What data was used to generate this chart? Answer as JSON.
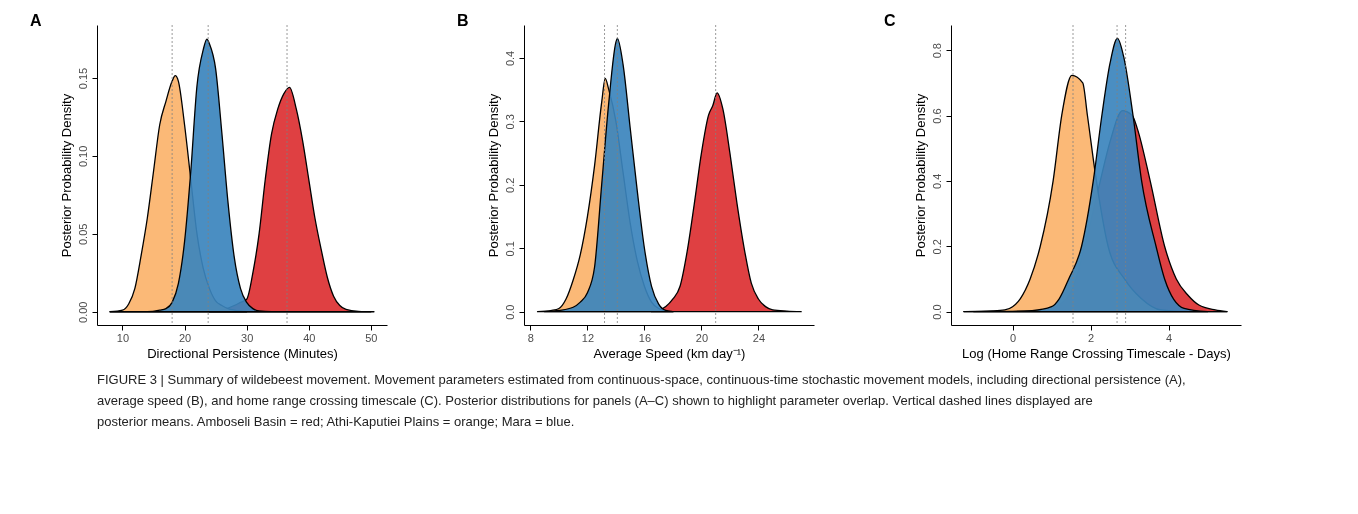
{
  "chart_data": [
    {
      "type": "area",
      "title": "A",
      "xlabel": "Directional Persistence (Minutes)",
      "ylabel": "Posterior Probability Density",
      "xlim": [
        5.9,
        52.6
      ],
      "ylim": [
        -0.0085,
        0.184
      ],
      "xticks": [
        10,
        20,
        30,
        40,
        50
      ],
      "yticks": [
        {
          "value": 0,
          "label": "0.00"
        },
        {
          "value": 0.05,
          "label": "0.05"
        },
        {
          "value": 0.1,
          "label": "0.10"
        },
        {
          "value": 0.15,
          "label": "0.15"
        }
      ],
      "grid": false,
      "series": [
        {
          "color": "#dc3032",
          "x": [
            24,
            26,
            28,
            29,
            30,
            31,
            32,
            33,
            34,
            35,
            36,
            36.9,
            38,
            39,
            40,
            41,
            42,
            43,
            44,
            45,
            46,
            48,
            50.5
          ],
          "values": [
            0,
            0.001,
            0.004,
            0.006,
            0.008,
            0.025,
            0.05,
            0.085,
            0.114,
            0.13,
            0.14,
            0.144,
            0.13,
            0.11,
            0.085,
            0.06,
            0.04,
            0.022,
            0.01,
            0.004,
            0.0015,
            0.0003,
            0
          ]
        },
        {
          "color": "#fbb36b",
          "x": [
            8,
            10,
            11,
            12,
            13,
            14,
            15,
            16,
            17,
            18,
            18.5,
            19,
            20,
            21,
            22,
            23,
            24,
            25,
            26,
            27,
            28,
            30
          ],
          "values": [
            0,
            0.001,
            0.005,
            0.015,
            0.036,
            0.06,
            0.09,
            0.12,
            0.135,
            0.148,
            0.1515,
            0.148,
            0.12,
            0.085,
            0.05,
            0.028,
            0.015,
            0.007,
            0.004,
            0.002,
            0.001,
            0
          ]
        },
        {
          "color": "#3b84bd",
          "x": [
            8,
            14,
            16,
            17,
            18,
            19,
            20,
            21,
            22,
            23,
            23.6,
            24,
            25,
            26,
            27,
            28,
            29,
            30,
            31,
            32,
            34,
            50
          ],
          "values": [
            0,
            0,
            0.001,
            0.002,
            0.006,
            0.018,
            0.045,
            0.09,
            0.145,
            0.168,
            0.175,
            0.172,
            0.156,
            0.115,
            0.07,
            0.035,
            0.015,
            0.006,
            0.002,
            0.0005,
            0,
            0
          ]
        }
      ],
      "ref_lines": [
        {
          "axis": "x",
          "value": 18,
          "color": "#808080",
          "line_style": "dotted"
        },
        {
          "axis": "x",
          "value": 23.8,
          "color": "#808080",
          "line_style": "dotted"
        },
        {
          "axis": "x",
          "value": 36.5,
          "color": "#808080",
          "line_style": "dotted"
        }
      ],
      "annotations": [
        "FIGURE 3 | Summary of wildebeest movement. Movement parameters estimated from continuous-space, continuous-time stochastic movement models, including directional persistence (A), average speed (B), and home range crossing timescale (C). Posterior distributions for panels (A–C) shown to highlight parameter overlap. Vertical dashed lines displayed are posterior means. Amboseli Basin = red; Athi-Kaputiei Plains = orange; Mara = blue."
      ]
    },
    {
      "type": "area",
      "title": "B",
      "xlabel": "Average Speed (km day⁻¹)",
      "ylabel": "Posterior Probability Density",
      "xlim": [
        7.55,
        27.9
      ],
      "ylim": [
        -0.021,
        0.452
      ],
      "xticks": [
        8,
        12,
        16,
        20,
        24
      ],
      "yticks": [
        {
          "value": 0,
          "label": "0.0"
        },
        {
          "value": 0.1,
          "label": "0.1"
        },
        {
          "value": 0.2,
          "label": "0.2"
        },
        {
          "value": 0.3,
          "label": "0.3"
        },
        {
          "value": 0.4,
          "label": "0.4"
        }
      ],
      "grid": false,
      "series": [
        {
          "color": "#dc3032",
          "x": [
            16.5,
            17,
            17.5,
            18,
            18.5,
            19,
            19.5,
            20,
            20.5,
            20.8,
            21.1,
            21.5,
            22,
            22.5,
            23,
            23.5,
            24,
            24.5,
            25,
            26,
            27
          ],
          "values": [
            0,
            0.002,
            0.008,
            0.02,
            0.04,
            0.095,
            0.17,
            0.25,
            0.31,
            0.325,
            0.345,
            0.32,
            0.25,
            0.17,
            0.1,
            0.045,
            0.02,
            0.008,
            0.003,
            0.001,
            0
          ]
        },
        {
          "color": "#fbb36b",
          "x": [
            8.5,
            9.5,
            10,
            10.5,
            11,
            11.5,
            12,
            12.5,
            13,
            13.25,
            13.5,
            14,
            14.5,
            15,
            15.5,
            16,
            16.5,
            17,
            17.5,
            18
          ],
          "values": [
            0,
            0.002,
            0.005,
            0.02,
            0.05,
            0.09,
            0.15,
            0.23,
            0.33,
            0.368,
            0.35,
            0.3,
            0.22,
            0.14,
            0.08,
            0.04,
            0.015,
            0.005,
            0.001,
            0
          ]
        },
        {
          "color": "#3b84bd",
          "x": [
            9,
            10,
            11,
            11.5,
            12,
            12.5,
            13,
            13.5,
            14,
            14.1,
            14.5,
            15,
            15.5,
            16,
            16.5,
            17,
            17.5,
            18
          ],
          "values": [
            0,
            0.002,
            0.007,
            0.015,
            0.03,
            0.07,
            0.2,
            0.33,
            0.425,
            0.431,
            0.39,
            0.29,
            0.19,
            0.1,
            0.04,
            0.012,
            0.002,
            0
          ]
        }
      ],
      "ref_lines": [
        {
          "axis": "x",
          "value": 13.2,
          "color": "#808080",
          "line_style": "dotted"
        },
        {
          "axis": "x",
          "value": 14.1,
          "color": "#808080",
          "line_style": "dotted"
        },
        {
          "axis": "x",
          "value": 21.0,
          "color": "#808080",
          "line_style": "dotted"
        }
      ]
    },
    {
      "type": "area",
      "title": "C",
      "xlabel": "Log (Home Range Crossing Timescale - Days)",
      "ylabel": "Posterior Probability Density",
      "xlim": [
        -1.58,
        5.86
      ],
      "ylim": [
        -0.041,
        0.877
      ],
      "xticks": [
        0,
        2,
        4
      ],
      "yticks": [
        {
          "value": 0,
          "label": "0.0"
        },
        {
          "value": 0.2,
          "label": "0.2"
        },
        {
          "value": 0.4,
          "label": "0.4"
        },
        {
          "value": 0.6,
          "label": "0.6"
        },
        {
          "value": 0.8,
          "label": "0.8"
        }
      ],
      "grid": false,
      "series": [
        {
          "color": "#dc3032",
          "x": [
            -1,
            0.5,
            1.0,
            1.5,
            1.85,
            2.25,
            2.5,
            2.82,
            3.07,
            3.2,
            3.53,
            3.9,
            4.2,
            4.5,
            4.78,
            5.2,
            5.5
          ],
          "values": [
            0,
            0.002,
            0.01,
            0.06,
            0.2,
            0.4,
            0.52,
            0.615,
            0.6,
            0.56,
            0.4,
            0.2,
            0.1,
            0.05,
            0.02,
            0.005,
            0
          ]
        },
        {
          "color": "#fbb36b",
          "x": [
            -1.25,
            -0.5,
            -0.2,
            0,
            0.2,
            0.45,
            0.71,
            1.04,
            1.26,
            1.52,
            1.8,
            1.92,
            2.15,
            2.45,
            2.87,
            3.3,
            3.8,
            4.5,
            5.5
          ],
          "values": [
            0,
            0.002,
            0.005,
            0.015,
            0.04,
            0.1,
            0.2,
            0.4,
            0.6,
            0.723,
            0.7,
            0.6,
            0.4,
            0.2,
            0.1,
            0.04,
            0.005,
            0,
            0
          ]
        },
        {
          "color": "#3b84bd",
          "x": [
            -1.25,
            0,
            0.5,
            1.0,
            1.2,
            1.44,
            1.77,
            2.07,
            2.29,
            2.5,
            2.69,
            2.85,
            3.09,
            3.31,
            3.68,
            3.9,
            4.4,
            5.0
          ],
          "values": [
            0,
            0.001,
            0.003,
            0.015,
            0.04,
            0.1,
            0.2,
            0.4,
            0.6,
            0.76,
            0.836,
            0.78,
            0.6,
            0.4,
            0.2,
            0.1,
            0.01,
            0
          ]
        }
      ],
      "ref_lines": [
        {
          "axis": "x",
          "value": 1.55,
          "color": "#808080",
          "line_style": "dotted"
        },
        {
          "axis": "x",
          "value": 2.68,
          "color": "#808080",
          "line_style": "dotted"
        },
        {
          "axis": "x",
          "value": 2.9,
          "color": "#808080",
          "line_style": "dotted"
        }
      ]
    }
  ]
}
